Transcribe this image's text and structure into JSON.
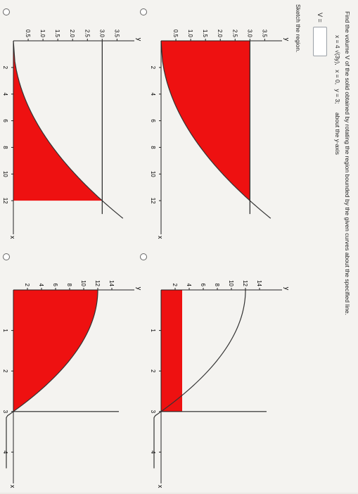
{
  "question": "Find the volume V of the solid obtained by rotating the region bounded by the given curves about the specified line.",
  "equation": {
    "curve": "x = 4 √(3y),",
    "bound1": "x = 0,",
    "bound2": "y = 3;",
    "axis": "about the y-axis"
  },
  "answer": {
    "label": "V =",
    "value": ""
  },
  "sketch_label": "Sketch the region.",
  "colors": {
    "fill": "#ee1111",
    "curve": "#333333"
  },
  "options": [
    {
      "id": "a",
      "x_label": "x",
      "y_label": "y",
      "x_ticks": [
        "2",
        "4",
        "6",
        "8",
        "10",
        "12"
      ],
      "y_ticks": [
        "0.5",
        "1.0",
        "1.5",
        "2.0",
        "2.5",
        "3.0",
        "3.5"
      ]
    },
    {
      "id": "b",
      "x_label": "x",
      "y_label": "y",
      "x_ticks": [
        "1",
        "2",
        "3",
        "4"
      ],
      "y_ticks": [
        "2",
        "4",
        "6",
        "8",
        "10",
        "12",
        "14"
      ]
    },
    {
      "id": "c",
      "x_label": "x",
      "y_label": "y",
      "x_ticks": [
        "2",
        "4",
        "6",
        "8",
        "10",
        "12"
      ],
      "y_ticks": [
        "0.5",
        "1.0",
        "1.5",
        "2.0",
        "2.5",
        "3.0",
        "3.5"
      ]
    },
    {
      "id": "d",
      "x_label": "x",
      "y_label": "y",
      "x_ticks": [
        "1",
        "2",
        "3",
        "4"
      ],
      "y_ticks": [
        "2",
        "4",
        "6",
        "8",
        "10",
        "12",
        "14"
      ]
    }
  ]
}
